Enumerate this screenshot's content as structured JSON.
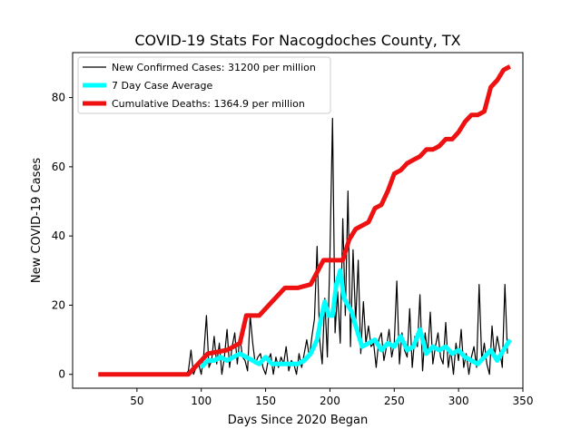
{
  "chart_data": {
    "type": "line",
    "title": "COVID-19 Stats For Nacogdoches County, TX",
    "xlabel": "Days Since 2020 Began",
    "ylabel": "New COVID-19 Cases",
    "xlim": [
      0,
      350
    ],
    "ylim": [
      -4,
      93
    ],
    "x_ticks": [
      50,
      100,
      150,
      200,
      250,
      300,
      350
    ],
    "y_ticks": [
      0,
      20,
      40,
      60,
      80
    ],
    "grid": false,
    "legend_position": "upper-left",
    "series": [
      {
        "name": "New Confirmed Cases: 31200 per million",
        "color": "#000000",
        "x": [
          20,
          30,
          40,
          50,
          60,
          70,
          80,
          85,
          88,
          90,
          92,
          94,
          96,
          98,
          100,
          102,
          104,
          106,
          108,
          110,
          112,
          114,
          116,
          118,
          120,
          122,
          124,
          126,
          128,
          130,
          132,
          134,
          136,
          138,
          140,
          142,
          144,
          146,
          148,
          150,
          152,
          154,
          156,
          158,
          160,
          162,
          164,
          166,
          168,
          170,
          172,
          174,
          176,
          178,
          180,
          182,
          184,
          186,
          188,
          190,
          192,
          194,
          196,
          198,
          200,
          202,
          204,
          206,
          208,
          210,
          212,
          214,
          216,
          218,
          220,
          222,
          224,
          226,
          228,
          230,
          232,
          234,
          236,
          238,
          240,
          242,
          244,
          246,
          248,
          250,
          252,
          254,
          256,
          258,
          260,
          262,
          264,
          266,
          268,
          270,
          272,
          274,
          276,
          278,
          280,
          282,
          284,
          286,
          288,
          290,
          292,
          294,
          296,
          298,
          300,
          302,
          304,
          306,
          308,
          310,
          312,
          314,
          316,
          318,
          320,
          322,
          324,
          326,
          328,
          330,
          332,
          334,
          336,
          338
        ],
        "values": [
          0,
          0,
          0,
          0,
          0,
          0,
          0,
          0,
          0,
          1,
          7,
          0,
          2,
          3,
          0,
          6,
          17,
          2,
          4,
          11,
          3,
          9,
          0,
          5,
          13,
          2,
          8,
          12,
          3,
          11,
          5,
          4,
          1,
          17,
          9,
          3,
          5,
          6,
          2,
          0,
          4,
          6,
          0,
          5,
          2,
          5,
          3,
          8,
          1,
          4,
          3,
          0,
          6,
          2,
          6,
          10,
          5,
          11,
          16,
          37,
          10,
          3,
          22,
          5,
          34,
          74,
          12,
          24,
          9,
          45,
          17,
          53,
          8,
          36,
          15,
          33,
          6,
          21,
          9,
          14,
          8,
          9,
          2,
          10,
          12,
          4,
          8,
          13,
          5,
          9,
          27,
          3,
          12,
          7,
          5,
          19,
          2,
          11,
          8,
          23,
          1,
          12,
          6,
          18,
          3,
          8,
          12,
          5,
          3,
          15,
          2,
          7,
          0,
          9,
          4,
          13,
          2,
          6,
          0,
          5,
          8,
          2,
          26,
          4,
          9,
          3,
          0,
          14,
          5,
          11,
          7,
          2,
          26,
          6
        ]
      },
      {
        "name": "7 Day Case Average",
        "color": "#00ffff",
        "x": [
          100,
          105,
          110,
          115,
          120,
          125,
          130,
          135,
          140,
          145,
          150,
          155,
          160,
          165,
          170,
          175,
          180,
          185,
          190,
          193,
          196,
          199,
          202,
          205,
          208,
          211,
          214,
          217,
          220,
          225,
          230,
          235,
          240,
          245,
          250,
          255,
          260,
          265,
          270,
          275,
          280,
          285,
          290,
          295,
          300,
          305,
          310,
          315,
          320,
          325,
          330,
          335,
          340
        ],
        "values": [
          2,
          4,
          4,
          5,
          4,
          5,
          6,
          5,
          4,
          3,
          5,
          3,
          3,
          3,
          3,
          3,
          4,
          6,
          10,
          16,
          21,
          17,
          17,
          26,
          30,
          22,
          20,
          18,
          14,
          8,
          9,
          10,
          7,
          9,
          8,
          11,
          7,
          8,
          13,
          6,
          8,
          7,
          8,
          6,
          7,
          5,
          4,
          3,
          5,
          7,
          4,
          7,
          10
        ]
      },
      {
        "name": "Cumulative Deaths: 1364.9 per million",
        "color": "#ee1111",
        "x": [
          20,
          90,
          95,
          105,
          120,
          130,
          135,
          145,
          155,
          165,
          175,
          185,
          195,
          200,
          210,
          215,
          220,
          225,
          230,
          235,
          240,
          245,
          250,
          255,
          260,
          265,
          270,
          275,
          280,
          285,
          290,
          295,
          300,
          305,
          310,
          315,
          320,
          325,
          330,
          335,
          340
        ],
        "values": [
          0,
          0,
          2,
          6,
          7,
          9,
          17,
          17,
          21,
          25,
          25,
          26,
          33,
          33,
          33,
          39,
          42,
          43,
          44,
          48,
          49,
          53,
          58,
          59,
          61,
          62,
          63,
          65,
          65,
          66,
          68,
          68,
          70,
          73,
          75,
          75,
          76,
          83,
          85,
          88,
          89
        ]
      }
    ]
  }
}
